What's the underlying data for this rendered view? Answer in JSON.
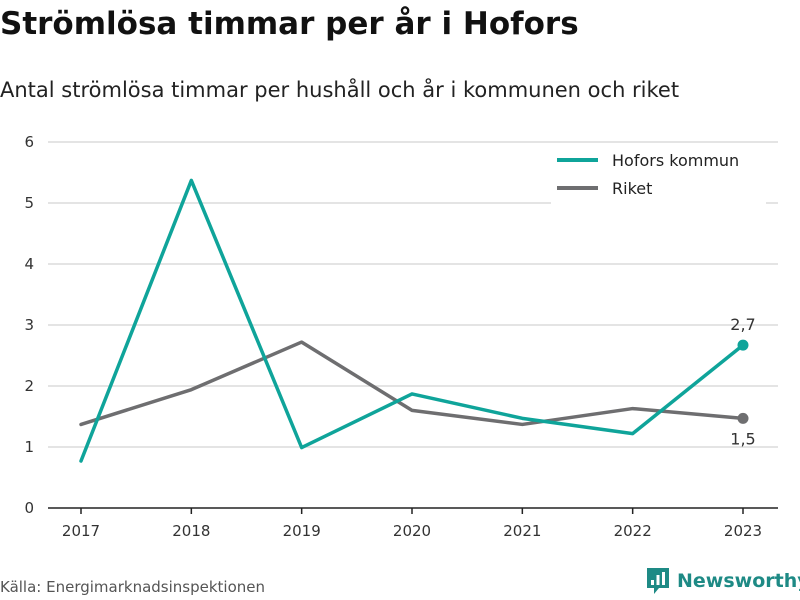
{
  "title": "Strömlösa timmar per år i Hofors",
  "subtitle": "Antal strömlösa timmar per hushåll och år i kommunen och riket",
  "source": "Källa: Energimarknadsinspektionen",
  "brand": {
    "name": "Newsworthy",
    "icon": "newsworthy-logo-icon",
    "color": "#1e8a85"
  },
  "chart_data": {
    "type": "line",
    "x": [
      "2017",
      "2018",
      "2019",
      "2020",
      "2021",
      "2022",
      "2023"
    ],
    "ylim": [
      0,
      6
    ],
    "yticks": [
      "0",
      "1",
      "2",
      "3",
      "4",
      "5",
      "6"
    ],
    "grid": true,
    "legend_position": "top-right",
    "series": [
      {
        "name": "Hofors kommun",
        "color": "#0fa49a",
        "values": [
          0.77,
          5.37,
          0.99,
          1.87,
          1.47,
          1.22,
          2.67
        ],
        "end_label": "2,7"
      },
      {
        "name": "Riket",
        "color": "#6e6e70",
        "values": [
          1.37,
          1.94,
          2.72,
          1.6,
          1.37,
          1.63,
          1.47
        ],
        "end_label": "1,5"
      }
    ]
  }
}
